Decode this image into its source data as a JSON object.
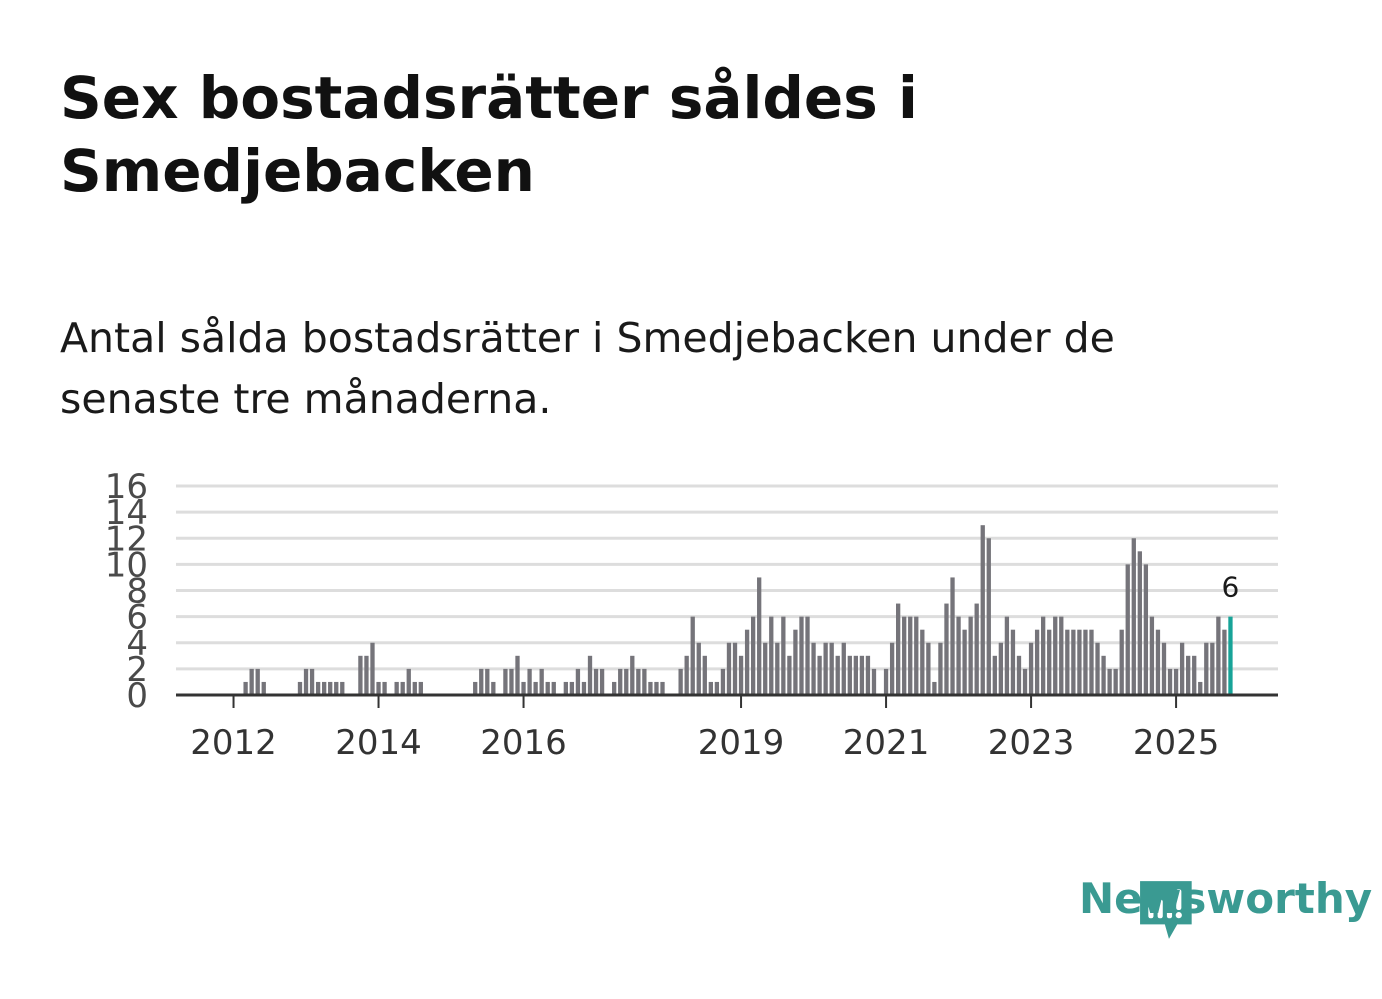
{
  "title": "Sex bostadsrätter såldes i Smedjebacken",
  "subtitle": "Antal sålda bostadsrätter i Smedjebacken under de senaste tre månaderna.",
  "brand": {
    "name": "Newsworthy",
    "color": "#3a9a92",
    "icon": "newsworthy-logo-icon"
  },
  "colors": {
    "bar": "#75747a",
    "highlight": "#17a398",
    "grid": "#dddddd",
    "axis": "#333333"
  },
  "chart_data": {
    "type": "bar",
    "title": "Antal sålda bostadsrätter i Smedjebacken under de senaste tre månaderna.",
    "ylim": [
      0,
      16
    ],
    "yticks": [
      "0",
      "2",
      "4",
      "6",
      "8",
      "10",
      "12",
      "14",
      "16"
    ],
    "xticks": [
      {
        "label": "2012",
        "index": 9
      },
      {
        "label": "2014",
        "index": 33
      },
      {
        "label": "2016",
        "index": 57
      },
      {
        "label": "2019",
        "index": 93
      },
      {
        "label": "2021",
        "index": 117
      },
      {
        "label": "2023",
        "index": 141
      },
      {
        "label": "2025",
        "index": 165
      }
    ],
    "values": [
      0,
      0,
      0,
      0,
      0,
      0,
      0,
      0,
      0,
      0,
      0,
      1,
      2,
      2,
      1,
      0,
      0,
      0,
      0,
      0,
      1,
      2,
      2,
      1,
      1,
      1,
      1,
      1,
      0,
      0,
      3,
      3,
      4,
      1,
      1,
      0,
      1,
      1,
      2,
      1,
      1,
      0,
      0,
      0,
      0,
      0,
      0,
      0,
      0,
      1,
      2,
      2,
      1,
      0,
      2,
      2,
      3,
      1,
      2,
      1,
      2,
      1,
      1,
      0,
      1,
      1,
      2,
      1,
      3,
      2,
      2,
      0,
      1,
      2,
      2,
      3,
      2,
      2,
      1,
      1,
      1,
      0,
      0,
      2,
      3,
      6,
      4,
      3,
      1,
      1,
      2,
      4,
      4,
      3,
      5,
      6,
      9,
      4,
      6,
      4,
      6,
      3,
      5,
      6,
      6,
      4,
      3,
      4,
      4,
      3,
      4,
      3,
      3,
      3,
      3,
      2,
      0,
      2,
      4,
      7,
      6,
      6,
      6,
      5,
      4,
      1,
      4,
      7,
      9,
      6,
      5,
      6,
      7,
      13,
      12,
      3,
      4,
      6,
      5,
      3,
      2,
      4,
      5,
      6,
      5,
      6,
      6,
      5,
      5,
      5,
      5,
      5,
      4,
      3,
      2,
      2,
      5,
      10,
      12,
      11,
      10,
      6,
      5,
      4,
      2,
      2,
      4,
      3,
      3,
      1,
      4,
      4,
      6,
      5,
      6
    ],
    "highlight_index": 174,
    "highlight_label": "6"
  }
}
